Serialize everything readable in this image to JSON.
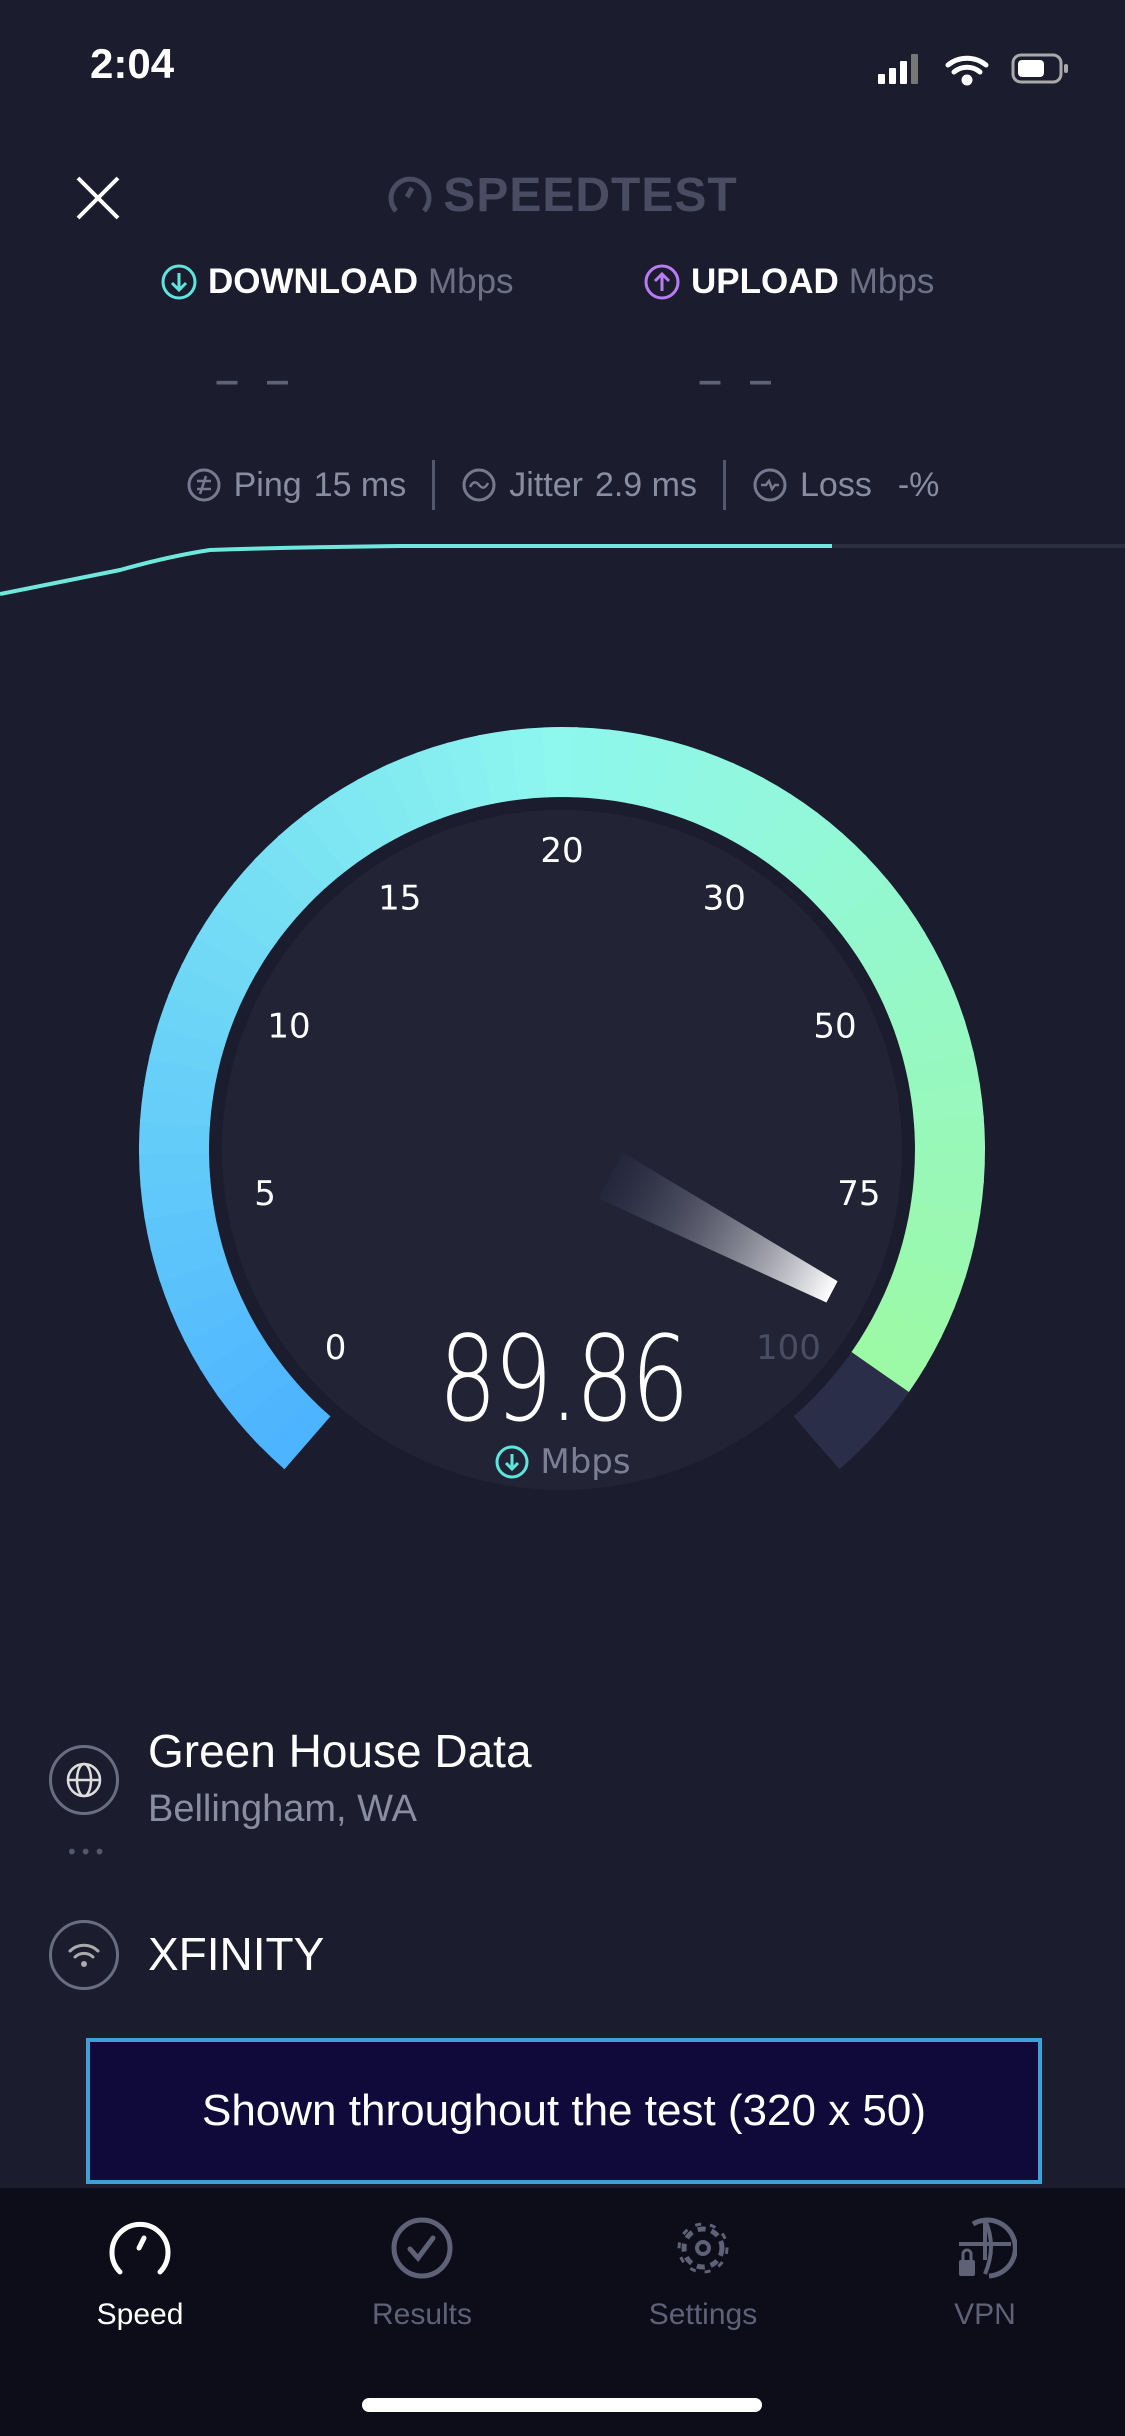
{
  "status_bar": {
    "time": "2:04"
  },
  "header": {
    "brand": "SPEEDTEST"
  },
  "download": {
    "label": "DOWNLOAD",
    "unit": "Mbps",
    "value": "– –",
    "color": "#5fe6dc"
  },
  "upload": {
    "label": "UPLOAD",
    "unit": "Mbps",
    "value": "– –",
    "color": "#b97cf5"
  },
  "stats": {
    "ping_label": "Ping",
    "ping_value": "15 ms",
    "jitter_label": "Jitter",
    "jitter_value": "2.9 ms",
    "loss_label": "Loss",
    "loss_value": "-%"
  },
  "gauge": {
    "ticks": [
      "0",
      "5",
      "10",
      "15",
      "20",
      "30",
      "50",
      "75",
      "100"
    ],
    "value": 89.86,
    "value_text": "89.86",
    "unit": "Mbps",
    "colors": [
      "#4cb3ff",
      "#8ef7ee",
      "#9ef99c"
    ]
  },
  "server": {
    "name": "Green House Data",
    "location": "Bellingham, WA"
  },
  "provider": {
    "name": "XFINITY"
  },
  "ad": {
    "text": "Shown throughout the test (320 x 50)"
  },
  "tabs": [
    {
      "label": "Speed",
      "active": true
    },
    {
      "label": "Results"
    },
    {
      "label": "Settings"
    },
    {
      "label": "VPN"
    }
  ]
}
